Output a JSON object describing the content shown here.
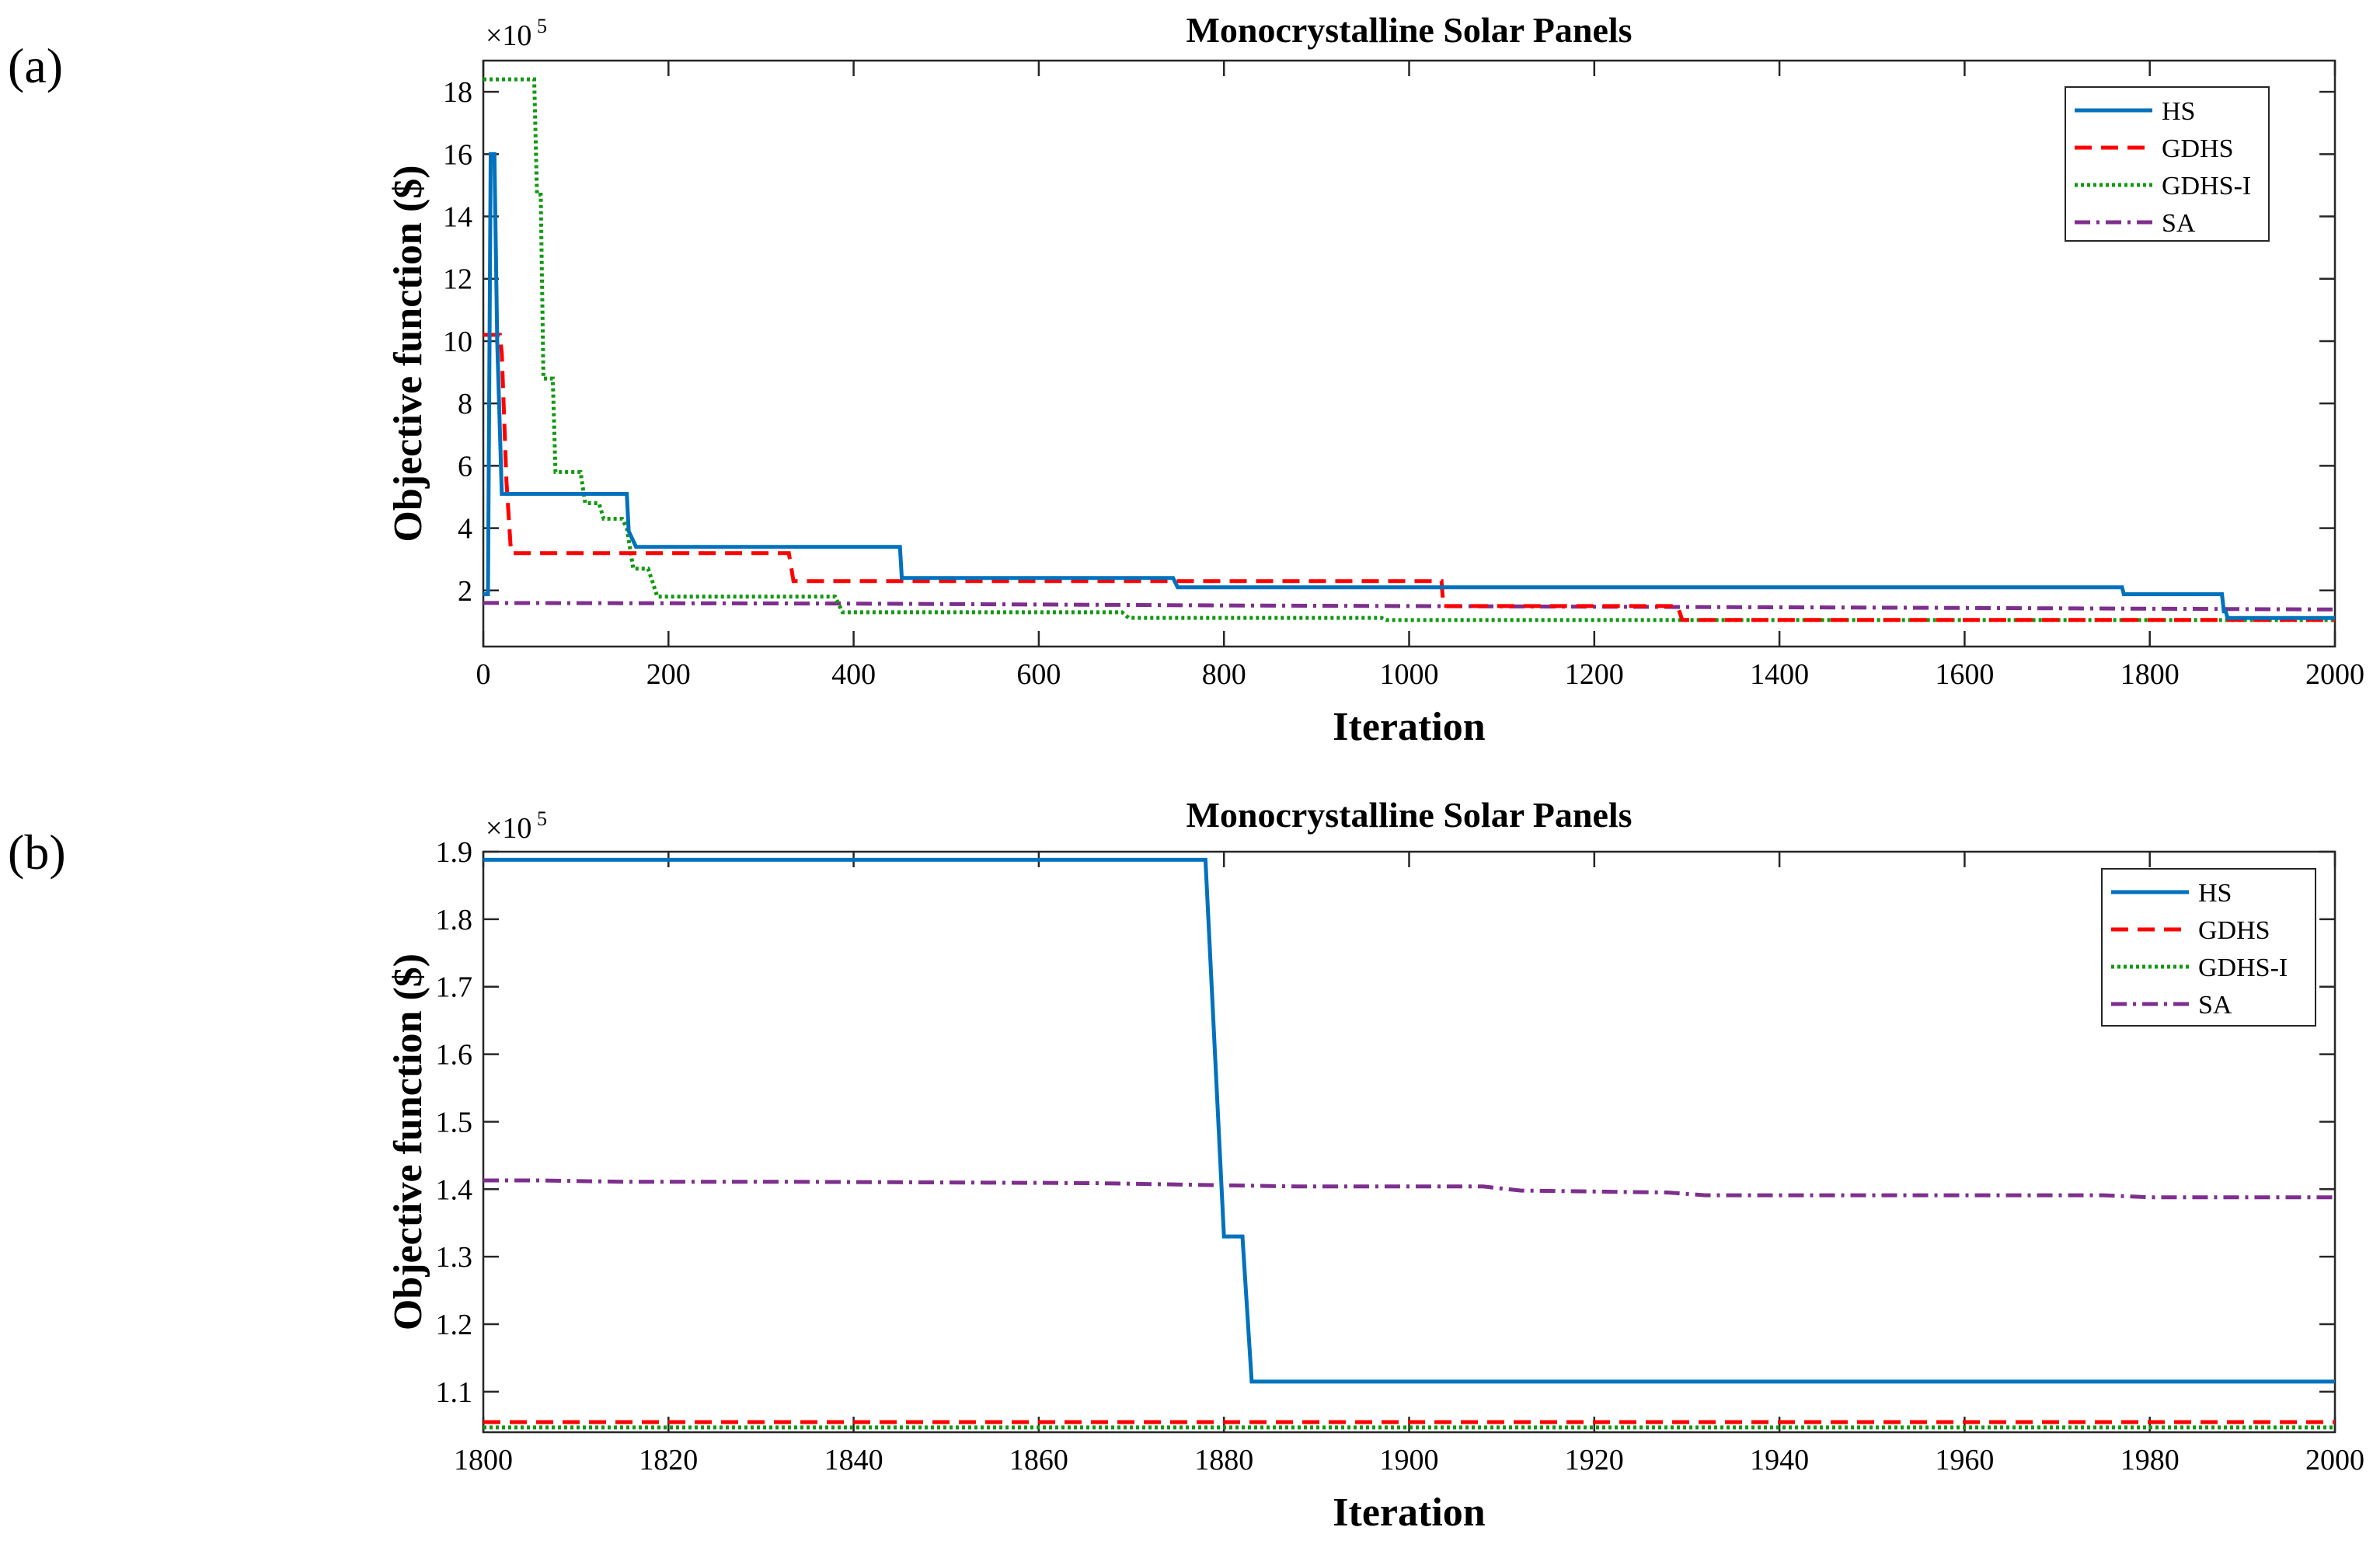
{
  "panel_labels": [
    "(a)",
    "(b)"
  ],
  "colors": {
    "HS": "#0072BD",
    "GDHS": "#FF0000",
    "GDHS-I": "#119911",
    "SA": "#7E2F8E"
  },
  "chart_data": [
    {
      "type": "line",
      "title": "Monocrystalline Solar Panels",
      "xlabel": "Iteration",
      "ylabel": "Objective function ($)",
      "exponent": "×10",
      "exponent_power": "5",
      "xlim": [
        0,
        2000
      ],
      "ylim": [
        0.2,
        19
      ],
      "xticks": [
        0,
        200,
        400,
        600,
        800,
        1000,
        1200,
        1400,
        1600,
        1800,
        2000
      ],
      "yticks": [
        2,
        4,
        6,
        8,
        10,
        12,
        14,
        16,
        18
      ],
      "series": [
        {
          "name": "HS",
          "style": "solid",
          "points": [
            [
              0,
              1.88
            ],
            [
              5,
              1.88
            ],
            [
              8,
              16
            ],
            [
              12,
              16
            ],
            [
              15,
              10
            ],
            [
              20,
              5.1
            ],
            [
              155,
              5.1
            ],
            [
              157,
              3.9
            ],
            [
              165,
              3.4
            ],
            [
              450,
              3.4
            ],
            [
              452,
              2.4
            ],
            [
              745,
              2.4
            ],
            [
              750,
              2.1
            ],
            [
              1770,
              2.1
            ],
            [
              1772,
              1.88
            ],
            [
              1878,
              1.88
            ],
            [
              1880,
              1.33
            ],
            [
              1882,
              1.33
            ],
            [
              1884,
              1.115
            ],
            [
              2000,
              1.115
            ]
          ]
        },
        {
          "name": "GDHS",
          "style": "dashed",
          "points": [
            [
              0,
              10.2
            ],
            [
              18,
              10.2
            ],
            [
              20,
              9.6
            ],
            [
              25,
              5.5
            ],
            [
              30,
              3.2
            ],
            [
              330,
              3.2
            ],
            [
              335,
              2.3
            ],
            [
              1035,
              2.3
            ],
            [
              1037,
              1.5
            ],
            [
              1290,
              1.5
            ],
            [
              1295,
              1.055
            ],
            [
              2000,
              1.055
            ]
          ]
        },
        {
          "name": "GDHS-I",
          "style": "dotted",
          "points": [
            [
              0,
              18.4
            ],
            [
              55,
              18.4
            ],
            [
              58,
              14.7
            ],
            [
              62,
              14.7
            ],
            [
              65,
              8.8
            ],
            [
              75,
              8.8
            ],
            [
              78,
              5.8
            ],
            [
              105,
              5.8
            ],
            [
              110,
              4.8
            ],
            [
              125,
              4.8
            ],
            [
              130,
              4.3
            ],
            [
              150,
              4.3
            ],
            [
              155,
              4
            ],
            [
              162,
              2.7
            ],
            [
              178,
              2.7
            ],
            [
              188,
              1.8
            ],
            [
              380,
              1.8
            ],
            [
              388,
              1.3
            ],
            [
              690,
              1.3
            ],
            [
              697,
              1.12
            ],
            [
              970,
              1.12
            ],
            [
              975,
              1.05
            ],
            [
              2000,
              1.05
            ]
          ]
        },
        {
          "name": "SA",
          "style": "dashdot",
          "points": [
            [
              0,
              1.6
            ],
            [
              400,
              1.58
            ],
            [
              800,
              1.52
            ],
            [
              1200,
              1.48
            ],
            [
              1600,
              1.44
            ],
            [
              2000,
              1.39
            ]
          ]
        }
      ]
    },
    {
      "type": "line",
      "title": "Monocrystalline Solar Panels",
      "xlabel": "Iteration",
      "ylabel": "Objective function ($)",
      "exponent": "×10",
      "exponent_power": "5",
      "xlim": [
        1800,
        2000
      ],
      "ylim": [
        1.04,
        1.9
      ],
      "xticks": [
        1800,
        1820,
        1840,
        1860,
        1880,
        1900,
        1920,
        1940,
        1960,
        1980,
        2000
      ],
      "yticks": [
        1.1,
        1.2,
        1.3,
        1.4,
        1.5,
        1.6,
        1.7,
        1.8,
        1.9
      ],
      "series": [
        {
          "name": "HS",
          "style": "solid",
          "points": [
            [
              1800,
              1.888
            ],
            [
              1878,
              1.888
            ],
            [
              1880,
              1.33
            ],
            [
              1882,
              1.33
            ],
            [
              1883,
              1.115
            ],
            [
              2000,
              1.115
            ]
          ]
        },
        {
          "name": "GDHS",
          "style": "dashed",
          "points": [
            [
              1800,
              1.055
            ],
            [
              2000,
              1.055
            ]
          ]
        },
        {
          "name": "GDHS-I",
          "style": "dotted",
          "points": [
            [
              1800,
              1.047
            ],
            [
              2000,
              1.047
            ]
          ]
        },
        {
          "name": "SA",
          "style": "dashdot",
          "points": [
            [
              1800,
              1.413
            ],
            [
              1806,
              1.413
            ],
            [
              1815,
              1.411
            ],
            [
              1832,
              1.411
            ],
            [
              1850,
              1.41
            ],
            [
              1866,
              1.409
            ],
            [
              1888,
              1.404
            ],
            [
              1908,
              1.404
            ],
            [
              1912,
              1.398
            ],
            [
              1928,
              1.395
            ],
            [
              1932,
              1.391
            ],
            [
              1975,
              1.391
            ],
            [
              1980,
              1.388
            ],
            [
              2000,
              1.388
            ]
          ]
        }
      ]
    }
  ]
}
